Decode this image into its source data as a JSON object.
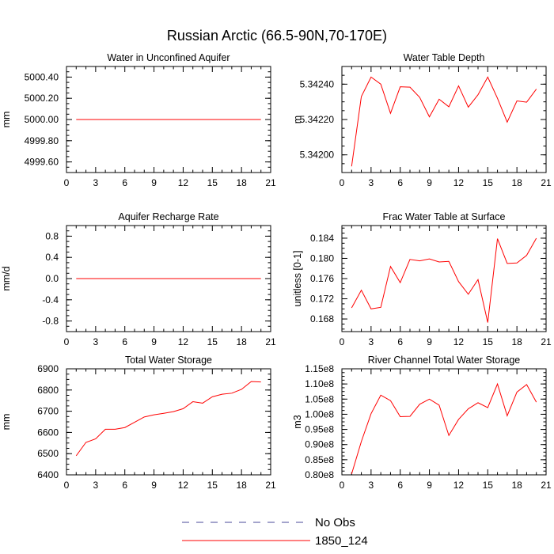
{
  "title": "Russian Arctic (66.5-90N,70-170E)",
  "colors": {
    "model": "#ff0000",
    "obs": "#4a4a9a",
    "axis": "#000000"
  },
  "legend": [
    {
      "label": "No Obs",
      "style": "dashed",
      "color": "#4a4a9a"
    },
    {
      "label": "1850_124",
      "style": "solid",
      "color": "#ff0000"
    }
  ],
  "chart_data": [
    {
      "type": "line",
      "title": "Water in Unconfined Aquifer",
      "ylabel": "mm",
      "xlim": [
        0,
        21
      ],
      "xticks": [
        0,
        3,
        6,
        9,
        12,
        15,
        18,
        21
      ],
      "ylim": [
        4999.5,
        5000.5
      ],
      "yticks": [
        4999.6,
        4999.8,
        5000.0,
        5000.2,
        5000.4
      ],
      "ytick_labels": [
        "4999.60",
        "4999.80",
        "5000.00",
        "5000.20",
        "5000.40"
      ],
      "series": [
        {
          "name": "1850_124",
          "x": [
            1,
            2,
            3,
            4,
            5,
            6,
            7,
            8,
            9,
            10,
            11,
            12,
            13,
            14,
            15,
            16,
            17,
            18,
            19,
            20
          ],
          "y": [
            5000,
            5000,
            5000,
            5000,
            5000,
            5000,
            5000,
            5000,
            5000,
            5000,
            5000,
            5000,
            5000,
            5000,
            5000,
            5000,
            5000,
            5000,
            5000,
            5000
          ]
        }
      ]
    },
    {
      "type": "line",
      "title": "Water Table Depth",
      "ylabel": "m",
      "xlim": [
        0,
        21
      ],
      "xticks": [
        0,
        3,
        6,
        9,
        12,
        15,
        18,
        21
      ],
      "ylim": [
        5.3419,
        5.3425
      ],
      "yticks": [
        5.342,
        5.3422,
        5.3424
      ],
      "ytick_labels": [
        "5.34200",
        "5.34220",
        "5.34240"
      ],
      "series": [
        {
          "name": "1850_124",
          "x": [
            1,
            2,
            3,
            4,
            5,
            6,
            7,
            8,
            9,
            10,
            11,
            12,
            13,
            14,
            15,
            16,
            17,
            18,
            19,
            20
          ],
          "y": [
            5.341935,
            5.34233,
            5.34244,
            5.3424,
            5.342235,
            5.342385,
            5.342383,
            5.342325,
            5.342215,
            5.342315,
            5.342272,
            5.34239,
            5.34227,
            5.34234,
            5.34244,
            5.34232,
            5.342185,
            5.342305,
            5.342298,
            5.342372
          ]
        }
      ]
    },
    {
      "type": "line",
      "title": "Aquifer Recharge Rate",
      "ylabel": "mm/d",
      "xlim": [
        0,
        21
      ],
      "xticks": [
        0,
        3,
        6,
        9,
        12,
        15,
        18,
        21
      ],
      "ylim": [
        -1.0,
        1.0
      ],
      "yticks": [
        -0.8,
        -0.4,
        0.0,
        0.4,
        0.8
      ],
      "ytick_labels": [
        "-0.8",
        "-0.4",
        "0.0",
        "0.4",
        "0.8"
      ],
      "series": [
        {
          "name": "1850_124",
          "x": [
            1,
            2,
            3,
            4,
            5,
            6,
            7,
            8,
            9,
            10,
            11,
            12,
            13,
            14,
            15,
            16,
            17,
            18,
            19,
            20
          ],
          "y": [
            0,
            0,
            0,
            0,
            0,
            0,
            0,
            0,
            0,
            0,
            0,
            0,
            0,
            0,
            0,
            0,
            0,
            0,
            0,
            0
          ]
        }
      ]
    },
    {
      "type": "line",
      "title": "Frac Water Table at Surface",
      "ylabel": "unitless [0-1]",
      "xlim": [
        0,
        21
      ],
      "xticks": [
        0,
        3,
        6,
        9,
        12,
        15,
        18,
        21
      ],
      "ylim": [
        0.1655,
        0.1865
      ],
      "yticks": [
        0.168,
        0.172,
        0.176,
        0.18,
        0.184
      ],
      "ytick_labels": [
        "0.168",
        "0.172",
        "0.176",
        "0.180",
        "0.184"
      ],
      "series": [
        {
          "name": "1850_124",
          "x": [
            1,
            2,
            3,
            4,
            5,
            6,
            7,
            8,
            9,
            10,
            11,
            12,
            13,
            14,
            15,
            16,
            17,
            18,
            19,
            20
          ],
          "y": [
            0.1702,
            0.1737,
            0.17,
            0.1703,
            0.1784,
            0.1752,
            0.1798,
            0.1795,
            0.1799,
            0.1793,
            0.1794,
            0.1754,
            0.1729,
            0.1758,
            0.1673,
            0.1839,
            0.179,
            0.1791,
            0.1806,
            0.184
          ]
        }
      ]
    },
    {
      "type": "line",
      "title": "Total Water Storage",
      "ylabel": "mm",
      "xlim": [
        0,
        21
      ],
      "xticks": [
        0,
        3,
        6,
        9,
        12,
        15,
        18,
        21
      ],
      "ylim": [
        6400,
        6900
      ],
      "yticks": [
        6400,
        6500,
        6600,
        6700,
        6800,
        6900
      ],
      "ytick_labels": [
        "6400",
        "6500",
        "6600",
        "6700",
        "6800",
        "6900"
      ],
      "series": [
        {
          "name": "1850_124",
          "x": [
            1,
            2,
            3,
            4,
            5,
            6,
            7,
            8,
            9,
            10,
            11,
            12,
            13,
            14,
            15,
            16,
            17,
            18,
            19,
            20
          ],
          "y": [
            6490,
            6553,
            6570,
            6615,
            6615,
            6623,
            6648,
            6673,
            6683,
            6690,
            6698,
            6712,
            6745,
            6738,
            6768,
            6780,
            6785,
            6803,
            6840,
            6838
          ]
        }
      ]
    },
    {
      "type": "line",
      "title": "River Channel Total Water Storage",
      "ylabel": "m3",
      "xlim": [
        0,
        21
      ],
      "xticks": [
        0,
        3,
        6,
        9,
        12,
        15,
        18,
        21
      ],
      "ylim": [
        80000000.0,
        115000000.0
      ],
      "yticks": [
        80000000.0,
        85000000.0,
        90000000.0,
        95000000.0,
        100000000.0,
        105000000.0,
        110000000.0,
        115000000.0
      ],
      "ytick_labels": [
        "0.80e8",
        "0.85e8",
        "0.90e8",
        "0.95e8",
        "1.00e8",
        "1.05e8",
        "1.10e8",
        "1.15e8"
      ],
      "series": [
        {
          "name": "1850_124",
          "x": [
            1,
            2,
            3,
            4,
            5,
            6,
            7,
            8,
            9,
            10,
            11,
            12,
            13,
            14,
            15,
            16,
            17,
            18,
            19,
            20
          ],
          "y": [
            80300000.0,
            91000000.0,
            100200000.0,
            106300000.0,
            104500000.0,
            99200000.0,
            99300000.0,
            103300000.0,
            105000000.0,
            103000000.0,
            93000000.0,
            98300000.0,
            101800000.0,
            103800000.0,
            102200000.0,
            110000000.0,
            99500000.0,
            107300000.0,
            109800000.0,
            104000000.0
          ]
        }
      ]
    }
  ]
}
